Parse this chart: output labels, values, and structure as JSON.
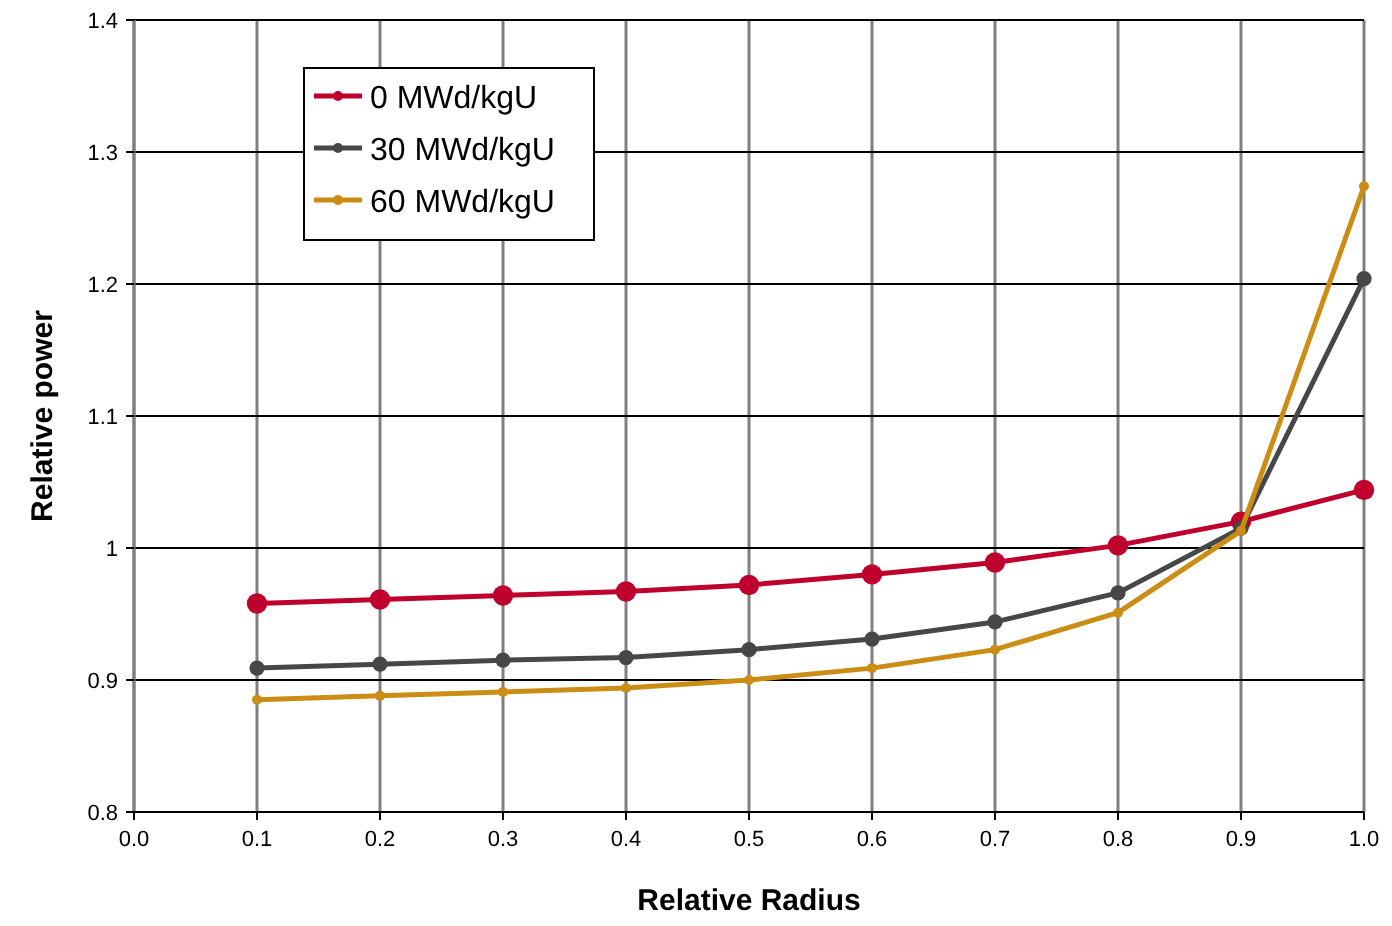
{
  "chart_data": {
    "type": "line",
    "xlabel": "Relative Radius",
    "ylabel": "Relative power",
    "x": [
      0.1,
      0.2,
      0.3,
      0.4,
      0.5,
      0.6,
      0.7,
      0.8,
      0.9,
      1.0
    ],
    "xlim": [
      0,
      1
    ],
    "xticks": [
      {
        "value": 0,
        "label": "0.0"
      },
      0.1,
      0.2,
      0.3,
      0.4,
      0.5,
      0.6,
      0.7,
      0.8,
      0.9,
      {
        "value": 1,
        "label": "1.0"
      }
    ],
    "ylim": [
      0.8,
      1.4
    ],
    "yticks": [
      0.8,
      0.9,
      1,
      1.1,
      1.2,
      1.3,
      1.4
    ],
    "grid": true,
    "legend": "top left",
    "marker": "circle",
    "series": [
      {
        "name": "0 MWd/kgU",
        "color": "#c0002c",
        "values": [
          0.958,
          0.961,
          0.964,
          0.967,
          0.972,
          0.98,
          0.989,
          1.002,
          1.02,
          1.044
        ]
      },
      {
        "name": "30 MWd/kgU",
        "color": "#474747",
        "values": [
          0.909,
          0.912,
          0.915,
          0.917,
          0.923,
          0.931,
          0.944,
          0.966,
          1.015,
          1.204
        ]
      },
      {
        "name": "60 MWd/kgU",
        "color": "#cc8d14",
        "values": [
          0.885,
          0.888,
          0.891,
          0.894,
          0.9,
          0.909,
          0.923,
          0.951,
          1.013,
          1.274
        ]
      }
    ]
  }
}
